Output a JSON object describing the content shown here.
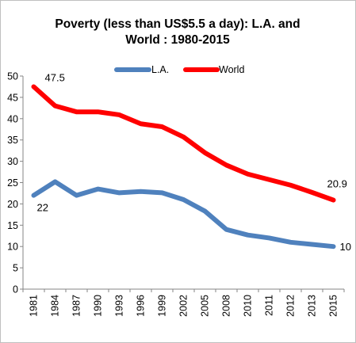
{
  "chart_data": {
    "type": "line",
    "title_lines": [
      "Poverty (less than US$5.5 a day):  L.A. and",
      "World : 1980-2015"
    ],
    "categories": [
      "1981",
      "1984",
      "1987",
      "1990",
      "1993",
      "1996",
      "1999",
      "2002",
      "2005",
      "2008",
      "2010",
      "2011",
      "2012",
      "2013",
      "2015"
    ],
    "ylim": [
      0,
      50
    ],
    "yticks": [
      0,
      5,
      10,
      15,
      20,
      25,
      30,
      35,
      40,
      45,
      50
    ],
    "grid": false,
    "legend_position": "top-center",
    "series": [
      {
        "name": "L.A.",
        "color": "#4f81bd",
        "values": [
          22,
          25.2,
          22,
          23.5,
          22.6,
          22.9,
          22.6,
          21,
          18.3,
          14,
          12.7,
          12,
          11,
          10.5,
          10
        ]
      },
      {
        "name": "World",
        "color": "#ff0000",
        "values": [
          47.5,
          43,
          41.6,
          41.6,
          40.9,
          38.8,
          38.1,
          35.7,
          32,
          29.1,
          27,
          25.7,
          24.4,
          22.7,
          20.9
        ]
      }
    ],
    "annotations": [
      {
        "series": 1,
        "index": 0,
        "text": "47.5"
      },
      {
        "series": 0,
        "index": 0,
        "text": "22"
      },
      {
        "series": 1,
        "index": 14,
        "text": "20.9"
      },
      {
        "series": 0,
        "index": 14,
        "text": "10"
      }
    ]
  }
}
